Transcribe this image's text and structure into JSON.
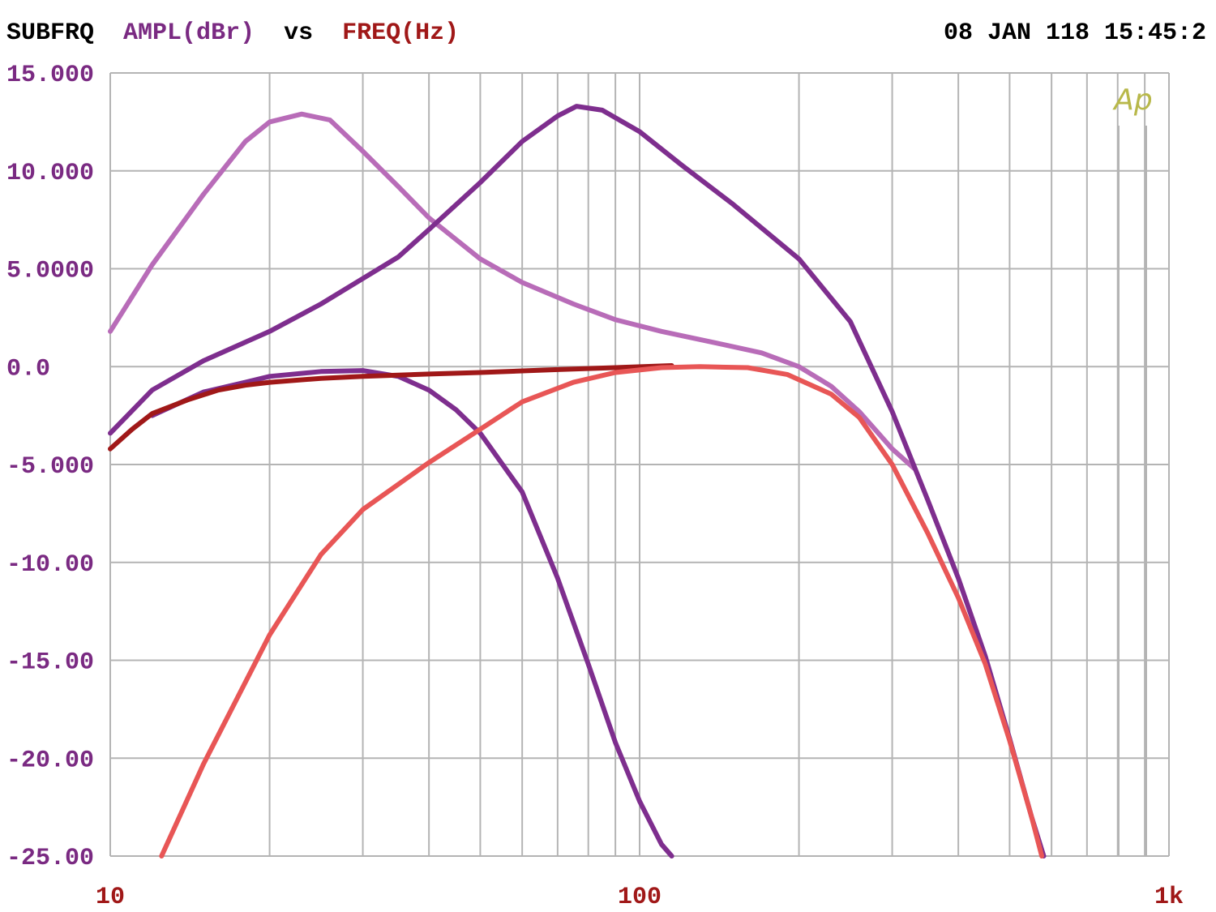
{
  "header": {
    "program": "SUBFRQ",
    "y_quantity": "AMPL(dBr)",
    "vs": "vs",
    "x_quantity": "FREQ(Hz)",
    "timestamp": "08 JAN 118 15:45:2"
  },
  "logo": "Ap",
  "colors": {
    "grid": "#b4b4b4",
    "y_label": "#7a2a82",
    "x_label": "#a01818",
    "header_text": "#000000",
    "logo": "#b8b84a"
  },
  "chart_data": {
    "type": "line",
    "x_scale": "log",
    "xlim": [
      10,
      1000
    ],
    "ylim": [
      -25,
      15
    ],
    "grid": true,
    "y_ticks": [
      {
        "value": 15,
        "label": "15.000"
      },
      {
        "value": 10,
        "label": "10.000"
      },
      {
        "value": 5,
        "label": "5.0000"
      },
      {
        "value": 0,
        "label": "0.0"
      },
      {
        "value": -5,
        "label": "-5.000"
      },
      {
        "value": -10,
        "label": "-10.00"
      },
      {
        "value": -15,
        "label": "-15.00"
      },
      {
        "value": -20,
        "label": "-20.00"
      },
      {
        "value": -25,
        "label": "-25.00"
      }
    ],
    "x_ticks": [
      {
        "value": 10,
        "label": "10"
      },
      {
        "value": 100,
        "label": "100"
      },
      {
        "value": 1000,
        "label": "1k"
      }
    ],
    "series": [
      {
        "color": "#b86cb8",
        "points": [
          [
            10,
            1.8
          ],
          [
            12,
            5.2
          ],
          [
            15,
            8.8
          ],
          [
            18,
            11.5
          ],
          [
            20,
            12.5
          ],
          [
            23,
            12.9
          ],
          [
            26,
            12.6
          ],
          [
            30,
            11.0
          ],
          [
            35,
            9.2
          ],
          [
            40,
            7.6
          ],
          [
            50,
            5.5
          ],
          [
            60,
            4.3
          ],
          [
            75,
            3.2
          ],
          [
            90,
            2.4
          ],
          [
            110,
            1.8
          ],
          [
            140,
            1.2
          ],
          [
            170,
            0.7
          ],
          [
            200,
            0.0
          ],
          [
            230,
            -1.0
          ],
          [
            260,
            -2.3
          ],
          [
            300,
            -4.2
          ],
          [
            330,
            -5.2
          ]
        ]
      },
      {
        "color": "#7e2e8e",
        "points": [
          [
            10,
            -3.4
          ],
          [
            12,
            -1.2
          ],
          [
            15,
            0.3
          ],
          [
            20,
            1.8
          ],
          [
            25,
            3.2
          ],
          [
            30,
            4.5
          ],
          [
            35,
            5.6
          ],
          [
            40,
            7.0
          ],
          [
            50,
            9.4
          ],
          [
            60,
            11.5
          ],
          [
            70,
            12.8
          ],
          [
            76,
            13.3
          ],
          [
            85,
            13.1
          ],
          [
            100,
            12.0
          ],
          [
            120,
            10.3
          ],
          [
            150,
            8.3
          ],
          [
            200,
            5.5
          ],
          [
            250,
            2.3
          ],
          [
            300,
            -2.3
          ],
          [
            350,
            -6.8
          ],
          [
            400,
            -10.8
          ],
          [
            450,
            -14.8
          ],
          [
            500,
            -19.0
          ],
          [
            550,
            -23.0
          ],
          [
            580,
            -25.0
          ]
        ]
      },
      {
        "color": "#7e2e8e",
        "points": [
          [
            12,
            -2.5
          ],
          [
            15,
            -1.3
          ],
          [
            18,
            -0.8
          ],
          [
            20,
            -0.5
          ],
          [
            25,
            -0.25
          ],
          [
            30,
            -0.2
          ],
          [
            35,
            -0.5
          ],
          [
            40,
            -1.2
          ],
          [
            45,
            -2.2
          ],
          [
            50,
            -3.4
          ],
          [
            60,
            -6.4
          ],
          [
            70,
            -10.8
          ],
          [
            80,
            -15.2
          ],
          [
            90,
            -19.2
          ],
          [
            100,
            -22.2
          ],
          [
            110,
            -24.4
          ],
          [
            115,
            -25.0
          ]
        ]
      },
      {
        "color": "#a01818",
        "points": [
          [
            10,
            -4.2
          ],
          [
            11,
            -3.2
          ],
          [
            12,
            -2.4
          ],
          [
            14,
            -1.7
          ],
          [
            16,
            -1.2
          ],
          [
            18,
            -0.95
          ],
          [
            20,
            -0.8
          ],
          [
            25,
            -0.6
          ],
          [
            30,
            -0.5
          ],
          [
            40,
            -0.38
          ],
          [
            50,
            -0.3
          ],
          [
            70,
            -0.15
          ],
          [
            90,
            -0.05
          ],
          [
            115,
            0.05
          ]
        ]
      },
      {
        "color": "#e85656",
        "points": [
          [
            12.5,
            -25.0
          ],
          [
            15,
            -20.3
          ],
          [
            20,
            -13.7
          ],
          [
            25,
            -9.6
          ],
          [
            30,
            -7.3
          ],
          [
            40,
            -4.9
          ],
          [
            50,
            -3.2
          ],
          [
            60,
            -1.8
          ],
          [
            75,
            -0.8
          ],
          [
            90,
            -0.3
          ],
          [
            110,
            -0.05
          ],
          [
            130,
            0.0
          ],
          [
            160,
            -0.05
          ],
          [
            190,
            -0.4
          ],
          [
            230,
            -1.4
          ],
          [
            260,
            -2.6
          ],
          [
            300,
            -5.0
          ],
          [
            350,
            -8.5
          ],
          [
            400,
            -11.8
          ],
          [
            450,
            -15.2
          ],
          [
            500,
            -19.1
          ],
          [
            550,
            -23.0
          ],
          [
            575,
            -25.0
          ]
        ]
      }
    ]
  }
}
